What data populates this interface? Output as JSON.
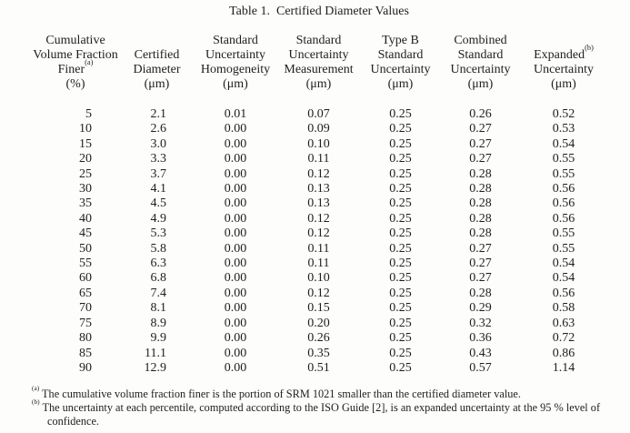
{
  "title": "Table 1.  Certified Diameter Values",
  "colors": {
    "text": "#1e1e1e",
    "background": "#fdfdfc"
  },
  "table": {
    "columns": [
      {
        "id": "cumulative-volume-fraction-finer",
        "lines": [
          [
            "Cumulative"
          ],
          [
            "Volume Fraction"
          ],
          [
            "Finer",
            {
              "sup": "(a)"
            }
          ],
          [
            "(%)"
          ]
        ]
      },
      {
        "id": "certified-diameter",
        "lines": [
          [
            ""
          ],
          [
            "Certified"
          ],
          [
            "Diameter"
          ],
          [
            "(μm)"
          ]
        ]
      },
      {
        "id": "standard-uncertainty-homogeneity",
        "lines": [
          [
            "Standard"
          ],
          [
            "Uncertainty"
          ],
          [
            "Homogeneity"
          ],
          [
            "(μm)"
          ]
        ]
      },
      {
        "id": "standard-uncertainty-measurement",
        "lines": [
          [
            "Standard"
          ],
          [
            "Uncertainty"
          ],
          [
            "Measurement"
          ],
          [
            "(μm)"
          ]
        ]
      },
      {
        "id": "type-b-standard-uncertainty",
        "lines": [
          [
            "Type B"
          ],
          [
            "Standard"
          ],
          [
            "Uncertainty"
          ],
          [
            "(μm)"
          ]
        ]
      },
      {
        "id": "combined-standard-uncertainty",
        "lines": [
          [
            "Combined"
          ],
          [
            "Standard"
          ],
          [
            "Uncertainty"
          ],
          [
            "(μm)"
          ]
        ]
      },
      {
        "id": "expanded-uncertainty",
        "lines": [
          [
            ""
          ],
          [
            "Expanded",
            {
              "sup": "(b)"
            }
          ],
          [
            "Uncertainty"
          ],
          [
            "(μm)"
          ]
        ]
      }
    ],
    "rows": [
      [
        "5",
        "2.1",
        "0.01",
        "0.07",
        "0.25",
        "0.26",
        "0.52"
      ],
      [
        "10",
        "2.6",
        "0.00",
        "0.09",
        "0.25",
        "0.27",
        "0.53"
      ],
      [
        "15",
        "3.0",
        "0.00",
        "0.10",
        "0.25",
        "0.27",
        "0.54"
      ],
      [
        "20",
        "3.3",
        "0.00",
        "0.11",
        "0.25",
        "0.27",
        "0.55"
      ],
      [
        "25",
        "3.7",
        "0.00",
        "0.12",
        "0.25",
        "0.28",
        "0.55"
      ],
      [
        "30",
        "4.1",
        "0.00",
        "0.13",
        "0.25",
        "0.28",
        "0.56"
      ],
      [
        "35",
        "4.5",
        "0.00",
        "0.13",
        "0.25",
        "0.28",
        "0.56"
      ],
      [
        "40",
        "4.9",
        "0.00",
        "0.12",
        "0.25",
        "0.28",
        "0.56"
      ],
      [
        "45",
        "5.3",
        "0.00",
        "0.12",
        "0.25",
        "0.28",
        "0.55"
      ],
      [
        "50",
        "5.8",
        "0.00",
        "0.11",
        "0.25",
        "0.27",
        "0.55"
      ],
      [
        "55",
        "6.3",
        "0.00",
        "0.11",
        "0.25",
        "0.27",
        "0.54"
      ],
      [
        "60",
        "6.8",
        "0.00",
        "0.10",
        "0.25",
        "0.27",
        "0.54"
      ],
      [
        "65",
        "7.4",
        "0.00",
        "0.12",
        "0.25",
        "0.28",
        "0.56"
      ],
      [
        "70",
        "8.1",
        "0.00",
        "0.15",
        "0.25",
        "0.29",
        "0.58"
      ],
      [
        "75",
        "8.9",
        "0.00",
        "0.20",
        "0.25",
        "0.32",
        "0.63"
      ],
      [
        "80",
        "9.9",
        "0.00",
        "0.26",
        "0.25",
        "0.36",
        "0.72"
      ],
      [
        "85",
        "11.1",
        "0.00",
        "0.35",
        "0.25",
        "0.43",
        "0.86"
      ],
      [
        "90",
        "12.9",
        "0.00",
        "0.51",
        "0.25",
        "0.57",
        "1.14"
      ]
    ]
  },
  "footnotes": [
    {
      "marker": "(a)",
      "text": "The cumulative volume fraction finer is the portion of SRM 1021 smaller than the certified diameter value."
    },
    {
      "marker": "(b)",
      "text": "The uncertainty at each percentile, computed according to the ISO Guide [2], is an expanded uncertainty at the 95 % level of confidence."
    }
  ]
}
